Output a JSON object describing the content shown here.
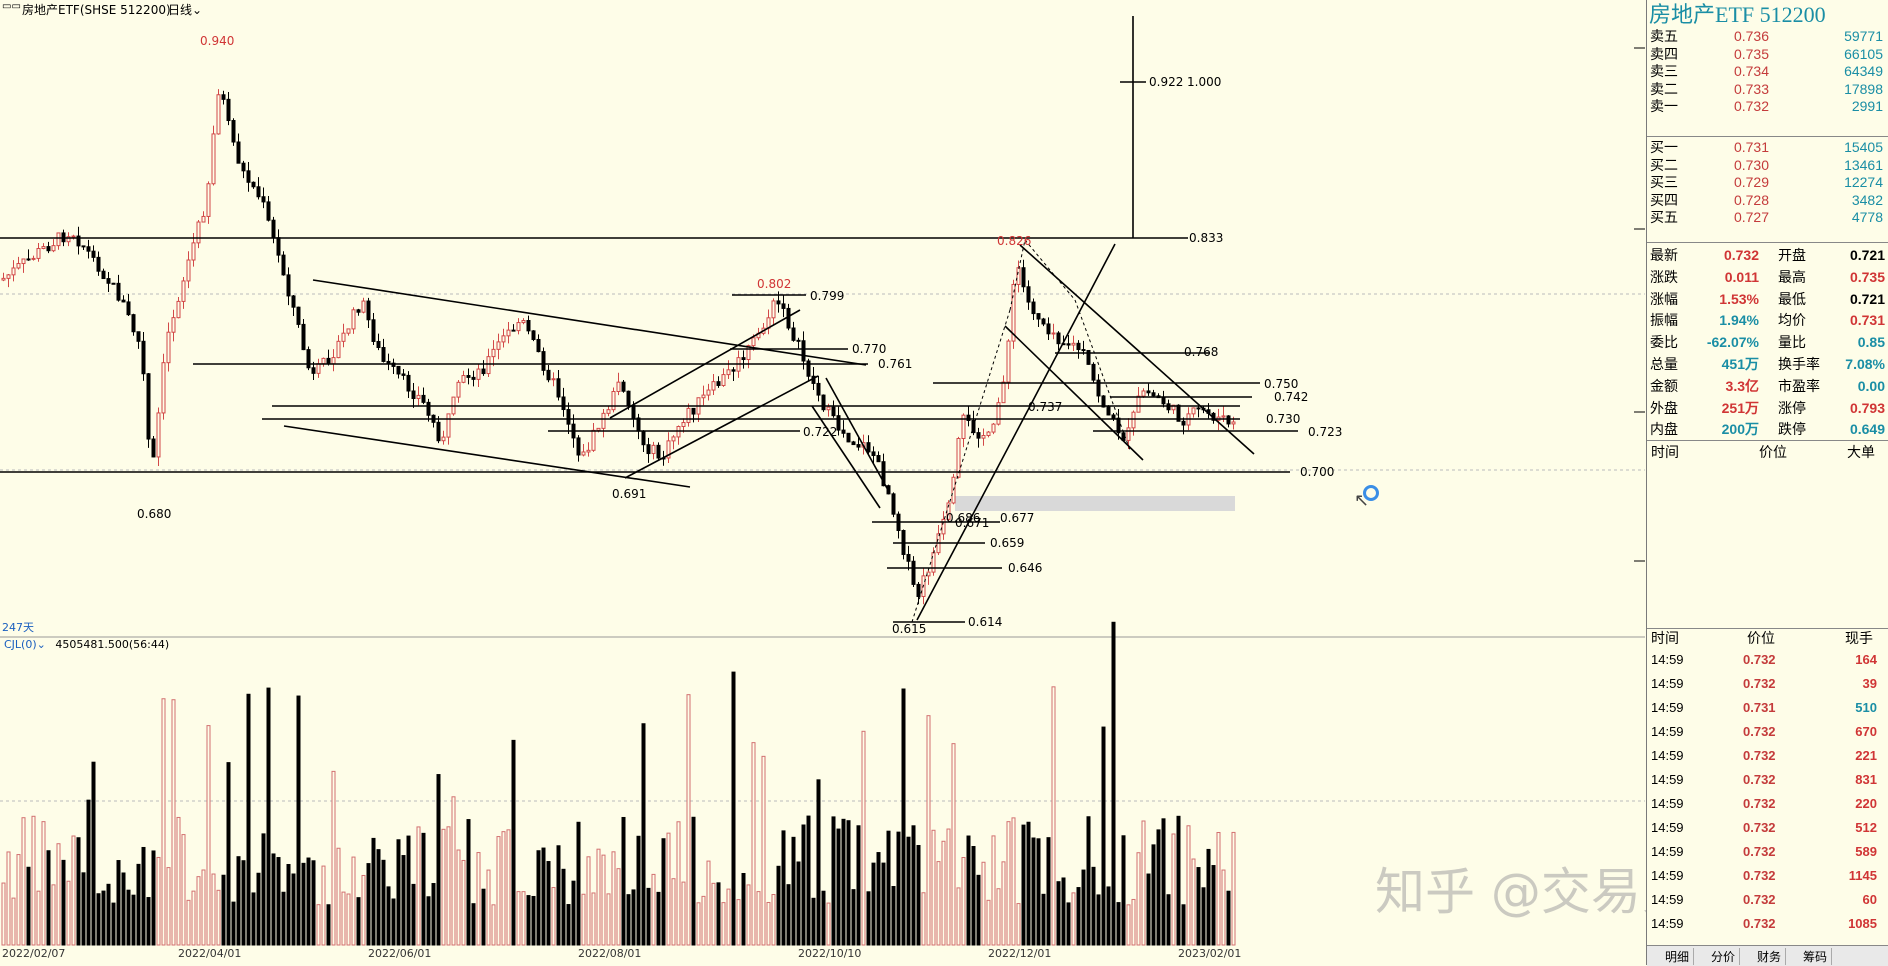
{
  "header": {
    "symbol_title": "房地产ETF(SHSE 512200)",
    "period": "日线",
    "day_count": "247天",
    "volume_indicator": "CJL(0)",
    "volume_value": "4505481.500(56:44)"
  },
  "panel": {
    "title": "房地产ETF 512200",
    "asks": [
      {
        "label": "卖五",
        "price": "0.736",
        "vol": "59771"
      },
      {
        "label": "卖四",
        "price": "0.735",
        "vol": "66105"
      },
      {
        "label": "卖三",
        "price": "0.734",
        "vol": "64349"
      },
      {
        "label": "卖二",
        "price": "0.733",
        "vol": "17898"
      },
      {
        "label": "卖一",
        "price": "0.732",
        "vol": "2991"
      }
    ],
    "bids": [
      {
        "label": "买一",
        "price": "0.731",
        "vol": "15405"
      },
      {
        "label": "买二",
        "price": "0.730",
        "vol": "13461"
      },
      {
        "label": "买三",
        "price": "0.729",
        "vol": "12274"
      },
      {
        "label": "买四",
        "price": "0.728",
        "vol": "3482"
      },
      {
        "label": "买五",
        "price": "0.727",
        "vol": "4778"
      }
    ],
    "stats": [
      {
        "k1": "最新",
        "v1": "0.732",
        "c1": "red",
        "k2": "开盘",
        "v2": "0.721",
        "c2": "blk"
      },
      {
        "k1": "涨跌",
        "v1": "0.011",
        "c1": "red",
        "k2": "最高",
        "v2": "0.735",
        "c2": "red"
      },
      {
        "k1": "涨幅",
        "v1": "1.53%",
        "c1": "red",
        "k2": "最低",
        "v2": "0.721",
        "c2": "blk"
      },
      {
        "k1": "振幅",
        "v1": "1.94%",
        "c1": "teal",
        "k2": "均价",
        "v2": "0.731",
        "c2": "red"
      },
      {
        "k1": "委比",
        "v1": "-62.07%",
        "c1": "teal",
        "k2": "量比",
        "v2": "0.85",
        "c2": "teal"
      },
      {
        "k1": "总量",
        "v1": "451万",
        "c1": "teal",
        "k2": "换手率",
        "v2": "7.08%",
        "c2": "teal"
      },
      {
        "k1": "金额",
        "v1": "3.3亿",
        "c1": "red",
        "k2": "市盈率",
        "v2": "0.00",
        "c2": "teal"
      },
      {
        "k1": "外盘",
        "v1": "251万",
        "c1": "red",
        "k2": "涨停",
        "v2": "0.793",
        "c2": "red"
      },
      {
        "k1": "内盘",
        "v1": "200万",
        "c1": "teal",
        "k2": "跌停",
        "v2": "0.649",
        "c2": "teal"
      }
    ],
    "bigorder_header": {
      "time": "时间",
      "price": "价位",
      "big": "大单"
    },
    "ticks_header": {
      "time": "时间",
      "price": "价位",
      "vol": "现手"
    },
    "ticks": [
      {
        "time": "14:59",
        "price": "0.732",
        "vol": "164",
        "c": "red"
      },
      {
        "time": "14:59",
        "price": "0.732",
        "vol": "39",
        "c": "red"
      },
      {
        "time": "14:59",
        "price": "0.731",
        "vol": "510",
        "c": "teal"
      },
      {
        "time": "14:59",
        "price": "0.732",
        "vol": "670",
        "c": "red"
      },
      {
        "time": "14:59",
        "price": "0.732",
        "vol": "221",
        "c": "red"
      },
      {
        "time": "14:59",
        "price": "0.732",
        "vol": "831",
        "c": "red"
      },
      {
        "time": "14:59",
        "price": "0.732",
        "vol": "220",
        "c": "red"
      },
      {
        "time": "14:59",
        "price": "0.732",
        "vol": "512",
        "c": "red"
      },
      {
        "time": "14:59",
        "price": "0.732",
        "vol": "589",
        "c": "red"
      },
      {
        "time": "14:59",
        "price": "0.732",
        "vol": "1145",
        "c": "red"
      },
      {
        "time": "14:59",
        "price": "0.732",
        "vol": "60",
        "c": "red"
      },
      {
        "time": "14:59",
        "price": "0.732",
        "vol": "1085",
        "c": "red"
      }
    ],
    "tabs": [
      "明细",
      "分价",
      "财务",
      "筹码"
    ]
  },
  "watermark": "知乎 @交易员云起",
  "chart_data": {
    "type": "candlestick",
    "dates": [
      "2022/02/07",
      "2022/04/01",
      "2022/06/01",
      "2022/08/01",
      "2022/10/10",
      "2022/12/01",
      "2023/02/01"
    ],
    "price_labels": [
      "0.940",
      "0.680",
      "0.691",
      "0.802",
      "0.799",
      "0.770",
      "0.761",
      "0.722",
      "0.615",
      "0.614",
      "0.646",
      "0.659",
      "0.671",
      "0.686",
      "0.677",
      "0.826",
      "0.833",
      "0.768",
      "0.750",
      "0.742",
      "0.737",
      "0.730",
      "0.723",
      "0.700",
      "0.922",
      "1.000"
    ],
    "highs": [
      0.94,
      0.802,
      0.826
    ],
    "lows": [
      0.68,
      0.691,
      0.615
    ],
    "colors": {
      "up": "#d24848",
      "down": "#000000",
      "background": "#fefde8"
    }
  }
}
